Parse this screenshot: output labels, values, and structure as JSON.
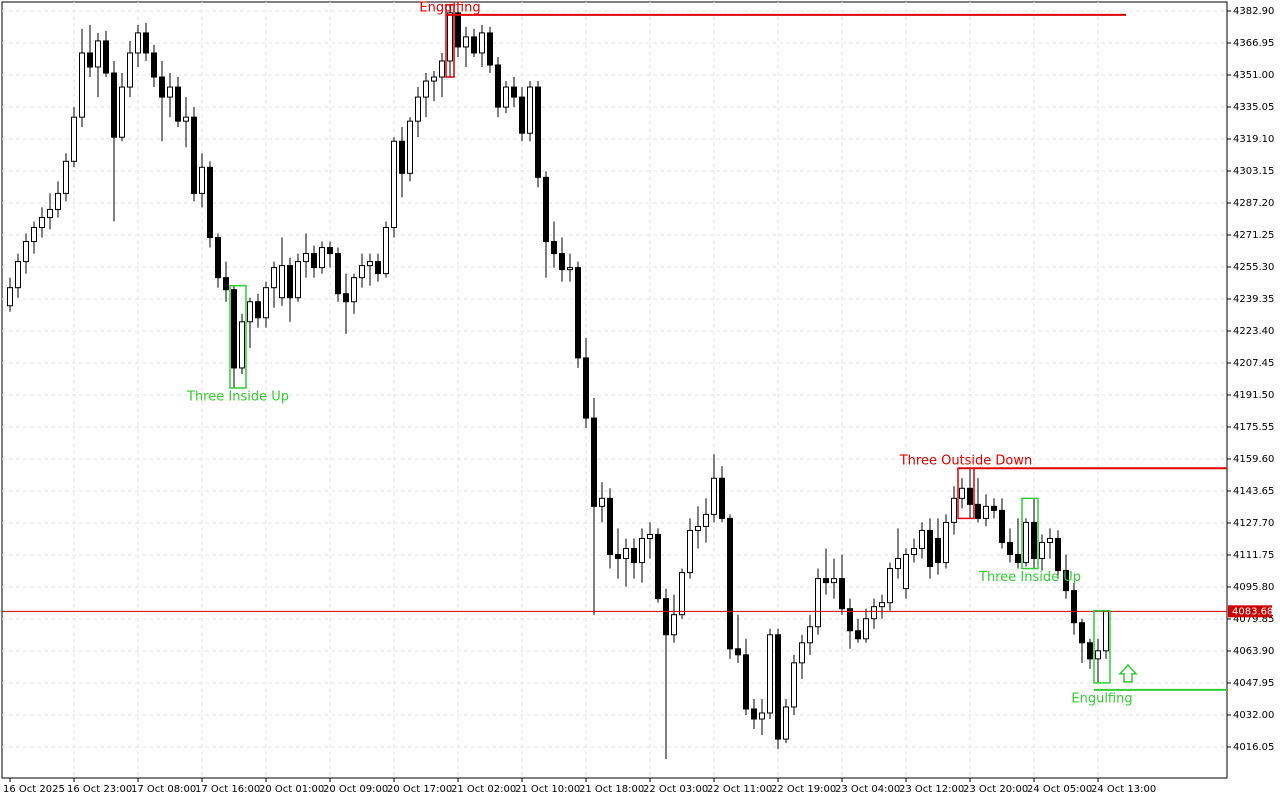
{
  "chart_data": {
    "type": "candlestick",
    "grid": true,
    "bull_color": "#ffffff",
    "bear_color": "#000000",
    "current_price": 4083.68,
    "current_price_color": "#cc0000",
    "ylim": [
      4000.6,
      4387.4
    ],
    "yticks": [
      {
        "value": 4382.9,
        "label": "4382.90"
      },
      {
        "value": 4366.95,
        "label": "4366.95"
      },
      {
        "value": 4351.0,
        "label": "4351.00"
      },
      {
        "value": 4335.05,
        "label": "4335.05"
      },
      {
        "value": 4319.1,
        "label": "4319.10"
      },
      {
        "value": 4303.15,
        "label": "4303.15"
      },
      {
        "value": 4287.2,
        "label": "4287.20"
      },
      {
        "value": 4271.25,
        "label": "4271.25"
      },
      {
        "value": 4255.3,
        "label": "4255.30"
      },
      {
        "value": 4239.35,
        "label": "4239.35"
      },
      {
        "value": 4223.4,
        "label": "4223.40"
      },
      {
        "value": 4207.45,
        "label": "4207.45"
      },
      {
        "value": 4191.5,
        "label": "4191.50"
      },
      {
        "value": 4175.55,
        "label": "4175.55"
      },
      {
        "value": 4159.6,
        "label": "4159.60"
      },
      {
        "value": 4143.65,
        "label": "4143.65"
      },
      {
        "value": 4127.7,
        "label": "4127.70"
      },
      {
        "value": 4111.75,
        "label": "4111.75"
      },
      {
        "value": 4095.8,
        "label": "4095.80"
      },
      {
        "value": 4079.85,
        "label": "4079.85"
      },
      {
        "value": 4063.9,
        "label": "4063.90"
      },
      {
        "value": 4047.95,
        "label": "4047.95"
      },
      {
        "value": 4032.0,
        "label": "4032.00"
      },
      {
        "value": 4016.05,
        "label": "4016.05"
      }
    ],
    "categories": [
      "16 Oct 2025",
      null,
      null,
      null,
      null,
      null,
      null,
      null,
      "16 Oct 23:00",
      null,
      null,
      null,
      null,
      null,
      null,
      null,
      "17 Oct 08:00",
      null,
      null,
      null,
      null,
      null,
      null,
      null,
      "17 Oct 16:00",
      null,
      null,
      null,
      null,
      null,
      null,
      null,
      "20 Oct 01:00",
      null,
      null,
      null,
      null,
      null,
      null,
      null,
      "20 Oct 09:00",
      null,
      null,
      null,
      null,
      null,
      null,
      null,
      "20 Oct 17:00",
      null,
      null,
      null,
      null,
      null,
      null,
      null,
      "21 Oct 02:00",
      null,
      null,
      null,
      null,
      null,
      null,
      null,
      "21 Oct 10:00",
      null,
      null,
      null,
      null,
      null,
      null,
      null,
      "21 Oct 18:00",
      null,
      null,
      null,
      null,
      null,
      null,
      null,
      "22 Oct 03:00",
      null,
      null,
      null,
      null,
      null,
      null,
      null,
      "22 Oct 11:00",
      null,
      null,
      null,
      null,
      null,
      null,
      null,
      "22 Oct 19:00",
      null,
      null,
      null,
      null,
      null,
      null,
      null,
      "23 Oct 04:00",
      null,
      null,
      null,
      null,
      null,
      null,
      null,
      "23 Oct 12:00",
      null,
      null,
      null,
      null,
      null,
      null,
      null,
      "23 Oct 20:00",
      null,
      null,
      null,
      null,
      null,
      null,
      null,
      "24 Oct 05:00",
      null,
      null,
      null,
      null,
      null,
      null,
      null,
      "24 Oct 13:00",
      null
    ],
    "open": [
      4236,
      4245,
      4258,
      4268,
      4275,
      4280,
      4284,
      4292,
      4308,
      4330,
      4362,
      4355,
      4368,
      4352,
      4320,
      4345,
      4362,
      4372,
      4362,
      4350,
      4340,
      4345,
      4328,
      4330,
      4292,
      4305,
      4270,
      4250,
      4244,
      4205,
      4228,
      4238,
      4230,
      4245,
      4240,
      4256,
      4240,
      4258,
      4262,
      4255,
      4265,
      4262,
      4242,
      4238,
      4250,
      4256,
      4258,
      4252,
      4275,
      4318,
      4302,
      4328,
      4340,
      4348,
      4350,
      4358,
      4382,
      4365,
      4370,
      4362,
      4372,
      4356,
      4335,
      4345,
      4340,
      4322,
      4345,
      4300,
      4268,
      4262,
      4254,
      4255,
      4210,
      4180,
      4136,
      4140,
      4112,
      4110,
      4115,
      4108,
      4120,
      4122,
      4090,
      4072,
      4082,
      4103,
      4124,
      4126,
      4132,
      4150,
      4130,
      4065,
      4062,
      4035,
      4030,
      4033,
      4072,
      4020,
      4036,
      4058,
      4068,
      4076,
      4100,
      4098,
      4100,
      4085,
      4074,
      4070,
      4080,
      4086,
      4088,
      4105,
      4095,
      4112,
      4115,
      4124,
      4120,
      4108,
      4128,
      4140,
      4145,
      4137,
      4130,
      4136,
      4134,
      4118,
      4112,
      4108,
      4128,
      4110,
      4118,
      4120,
      4104,
      4094,
      4078,
      4068,
      4060,
      4064
    ],
    "high": [
      4250,
      4262,
      4272,
      4278,
      4285,
      4292,
      4298,
      4312,
      4335,
      4374,
      4376,
      4372,
      4373,
      4358,
      4352,
      4368,
      4376,
      4377,
      4366,
      4358,
      4352,
      4350,
      4340,
      4335,
      4312,
      4308,
      4272,
      4258,
      4246,
      4232,
      4240,
      4242,
      4248,
      4258,
      4270,
      4260,
      4262,
      4272,
      4266,
      4268,
      4268,
      4265,
      4252,
      4252,
      4262,
      4262,
      4262,
      4278,
      4320,
      4325,
      4330,
      4345,
      4352,
      4353,
      4362,
      4386,
      4385,
      4375,
      4374,
      4376,
      4375,
      4360,
      4348,
      4350,
      4345,
      4348,
      4348,
      4303,
      4278,
      4270,
      4262,
      4258,
      4220,
      4190,
      4148,
      4145,
      4125,
      4120,
      4120,
      4125,
      4128,
      4125,
      4095,
      4092,
      4105,
      4130,
      4136,
      4140,
      4162,
      4156,
      4132,
      4082,
      4070,
      4040,
      4040,
      4075,
      4075,
      4040,
      4062,
      4072,
      4082,
      4105,
      4115,
      4110,
      4112,
      4090,
      4080,
      4085,
      4090,
      4092,
      4108,
      4125,
      4115,
      4120,
      4128,
      4130,
      4130,
      4132,
      4146,
      4150,
      4155,
      4150,
      4142,
      4140,
      4140,
      4125,
      4130,
      4130,
      4140,
      4122,
      4125,
      4124,
      4112,
      4098,
      4080,
      4070,
      4070,
      4084
    ],
    "low": [
      4233,
      4240,
      4252,
      4262,
      4270,
      4274,
      4280,
      4288,
      4305,
      4325,
      4350,
      4340,
      4350,
      4278,
      4318,
      4340,
      4355,
      4358,
      4345,
      4318,
      4330,
      4325,
      4315,
      4288,
      4285,
      4265,
      4245,
      4238,
      4195,
      4202,
      4215,
      4225,
      4225,
      4235,
      4236,
      4228,
      4238,
      4250,
      4250,
      4252,
      4255,
      4238,
      4222,
      4232,
      4245,
      4246,
      4248,
      4250,
      4270,
      4290,
      4298,
      4320,
      4330,
      4338,
      4340,
      4350,
      4360,
      4355,
      4360,
      4355,
      4352,
      4330,
      4332,
      4335,
      4318,
      4318,
      4295,
      4250,
      4255,
      4248,
      4248,
      4205,
      4175,
      4082,
      4128,
      4105,
      4100,
      4096,
      4100,
      4098,
      4110,
      4088,
      4010,
      4068,
      4080,
      4100,
      4115,
      4118,
      4128,
      4128,
      4060,
      4058,
      4032,
      4025,
      4022,
      4030,
      4015,
      4018,
      4032,
      4050,
      4062,
      4072,
      4092,
      4090,
      4082,
      4065,
      4068,
      4068,
      4075,
      4080,
      4084,
      4100,
      4090,
      4108,
      4110,
      4100,
      4102,
      4105,
      4122,
      4135,
      4130,
      4128,
      4126,
      4130,
      4115,
      4108,
      4105,
      4106,
      4105,
      4104,
      4110,
      4100,
      4090,
      4072,
      4058,
      4055,
      4048,
      4060
    ],
    "close": [
      4245,
      4258,
      4268,
      4275,
      4280,
      4284,
      4292,
      4308,
      4330,
      4362,
      4355,
      4368,
      4352,
      4320,
      4345,
      4362,
      4372,
      4362,
      4350,
      4340,
      4345,
      4328,
      4330,
      4292,
      4305,
      4270,
      4250,
      4244,
      4205,
      4228,
      4238,
      4230,
      4245,
      4255,
      4256,
      4240,
      4258,
      4262,
      4255,
      4265,
      4262,
      4242,
      4238,
      4250,
      4256,
      4258,
      4252,
      4275,
      4318,
      4302,
      4328,
      4340,
      4348,
      4350,
      4358,
      4382,
      4365,
      4370,
      4362,
      4372,
      4356,
      4335,
      4345,
      4340,
      4322,
      4345,
      4300,
      4268,
      4262,
      4254,
      4255,
      4210,
      4180,
      4136,
      4140,
      4112,
      4110,
      4115,
      4108,
      4120,
      4122,
      4090,
      4072,
      4082,
      4103,
      4124,
      4126,
      4132,
      4150,
      4130,
      4065,
      4062,
      4035,
      4030,
      4033,
      4072,
      4020,
      4036,
      4058,
      4068,
      4076,
      4100,
      4098,
      4100,
      4085,
      4074,
      4070,
      4080,
      4086,
      4088,
      4105,
      4110,
      4112,
      4115,
      4124,
      4106,
      4108,
      4128,
      4140,
      4145,
      4137,
      4130,
      4136,
      4134,
      4118,
      4112,
      4108,
      4128,
      4110,
      4118,
      4120,
      4104,
      4094,
      4078,
      4068,
      4060,
      4064,
      4083.68
    ],
    "annotations": [
      {
        "text": "Engulfing",
        "color": "#e00000",
        "candles": [
          55,
          55
        ],
        "level": 4381
      },
      {
        "text": "Three Inside Up",
        "color": "#33cc33",
        "candles": [
          28,
          29
        ]
      },
      {
        "text": "Three Outside Down",
        "color": "#e00000",
        "candles": [
          119,
          120
        ],
        "level": 4155
      },
      {
        "text": "Three Inside Up",
        "color": "#33cc33",
        "candles": [
          127,
          128
        ]
      },
      {
        "text": "Engulfing",
        "color": "#33cc33",
        "candles": [
          136,
          137
        ],
        "level": 4044.5,
        "arrow": "up"
      }
    ]
  }
}
